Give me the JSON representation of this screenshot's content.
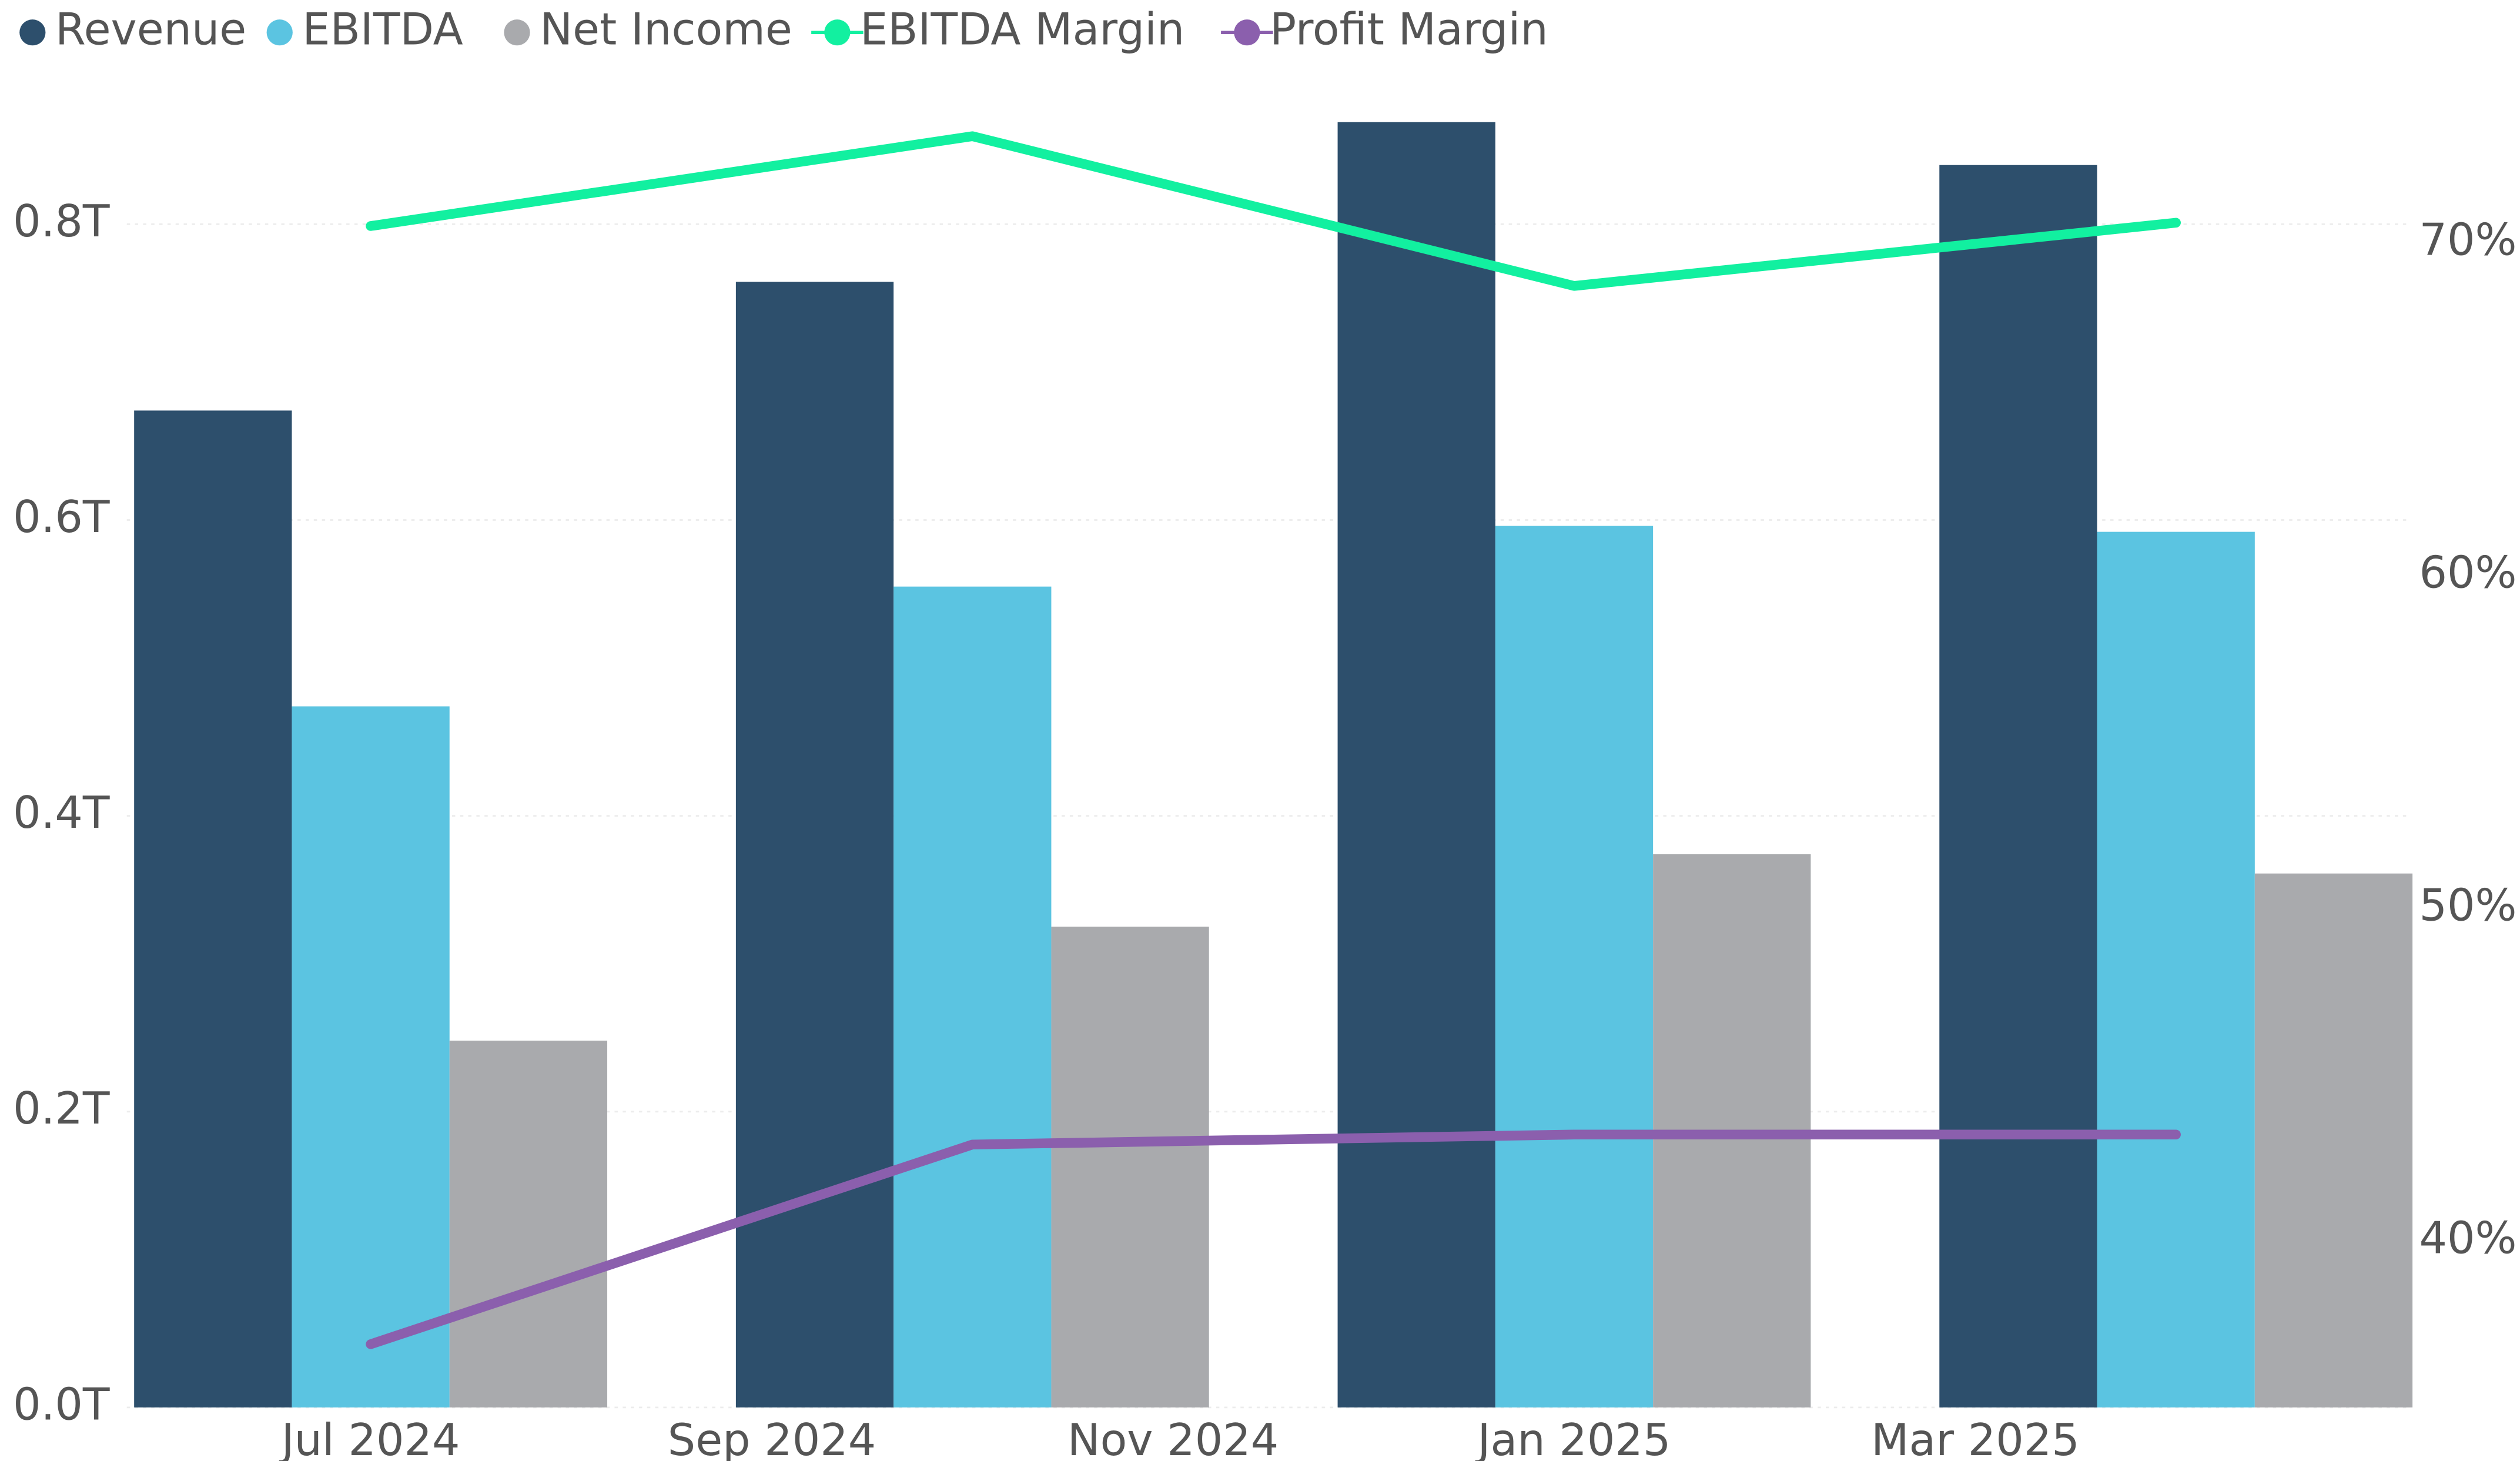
{
  "chart_data": {
    "type": "bar",
    "x": [
      "2024-07",
      "2024-10",
      "2025-01",
      "2025-04"
    ],
    "series": [
      {
        "name": "Revenue",
        "color": "#2d4f6c",
        "values": [
          0.674,
          0.761,
          0.869,
          0.84
        ]
      },
      {
        "name": "EBITDA",
        "color": "#5bc4e1",
        "values": [
          0.474,
          0.555,
          0.596,
          0.592
        ]
      },
      {
        "name": "Net Income",
        "color": "#a9aaad",
        "values": [
          0.248,
          0.325,
          0.374,
          0.361
        ]
      },
      {
        "name": "EBITDA Margin",
        "type": "line",
        "axis": "y2",
        "color": "#12f0a0",
        "values": [
          70.5,
          73.2,
          68.7,
          70.6
        ]
      },
      {
        "name": "Profit Margin",
        "type": "line",
        "axis": "y2",
        "color": "#8b5fad",
        "values": [
          36.9,
          42.9,
          43.2,
          43.2
        ]
      }
    ],
    "ylim": [
      0,
      0.9
    ],
    "yticks": [
      {
        "value": 0,
        "label": "0.0T"
      },
      {
        "value": 0.2,
        "label": "0.2T"
      },
      {
        "value": 0.4,
        "label": "0.4T"
      },
      {
        "value": 0.6,
        "label": "0.6T"
      },
      {
        "value": 0.8,
        "label": "0.8T"
      }
    ],
    "y2lim": [
      35,
      75
    ],
    "y2ticks": [
      {
        "value": 40,
        "label": "40%"
      },
      {
        "value": 50,
        "label": "50%"
      },
      {
        "value": 60,
        "label": "60%"
      },
      {
        "value": 70,
        "label": "70%"
      }
    ],
    "xticks": [
      {
        "value": "2024-07",
        "label": "Jul 2024"
      },
      {
        "value": "2024-09",
        "label": "Sep 2024"
      },
      {
        "value": "2024-11",
        "label": "Nov 2024"
      },
      {
        "value": "2025-01",
        "label": "Jan 2025"
      },
      {
        "value": "2025-03",
        "label": "Mar 2025"
      }
    ],
    "grid": true,
    "legend": "top-left"
  }
}
